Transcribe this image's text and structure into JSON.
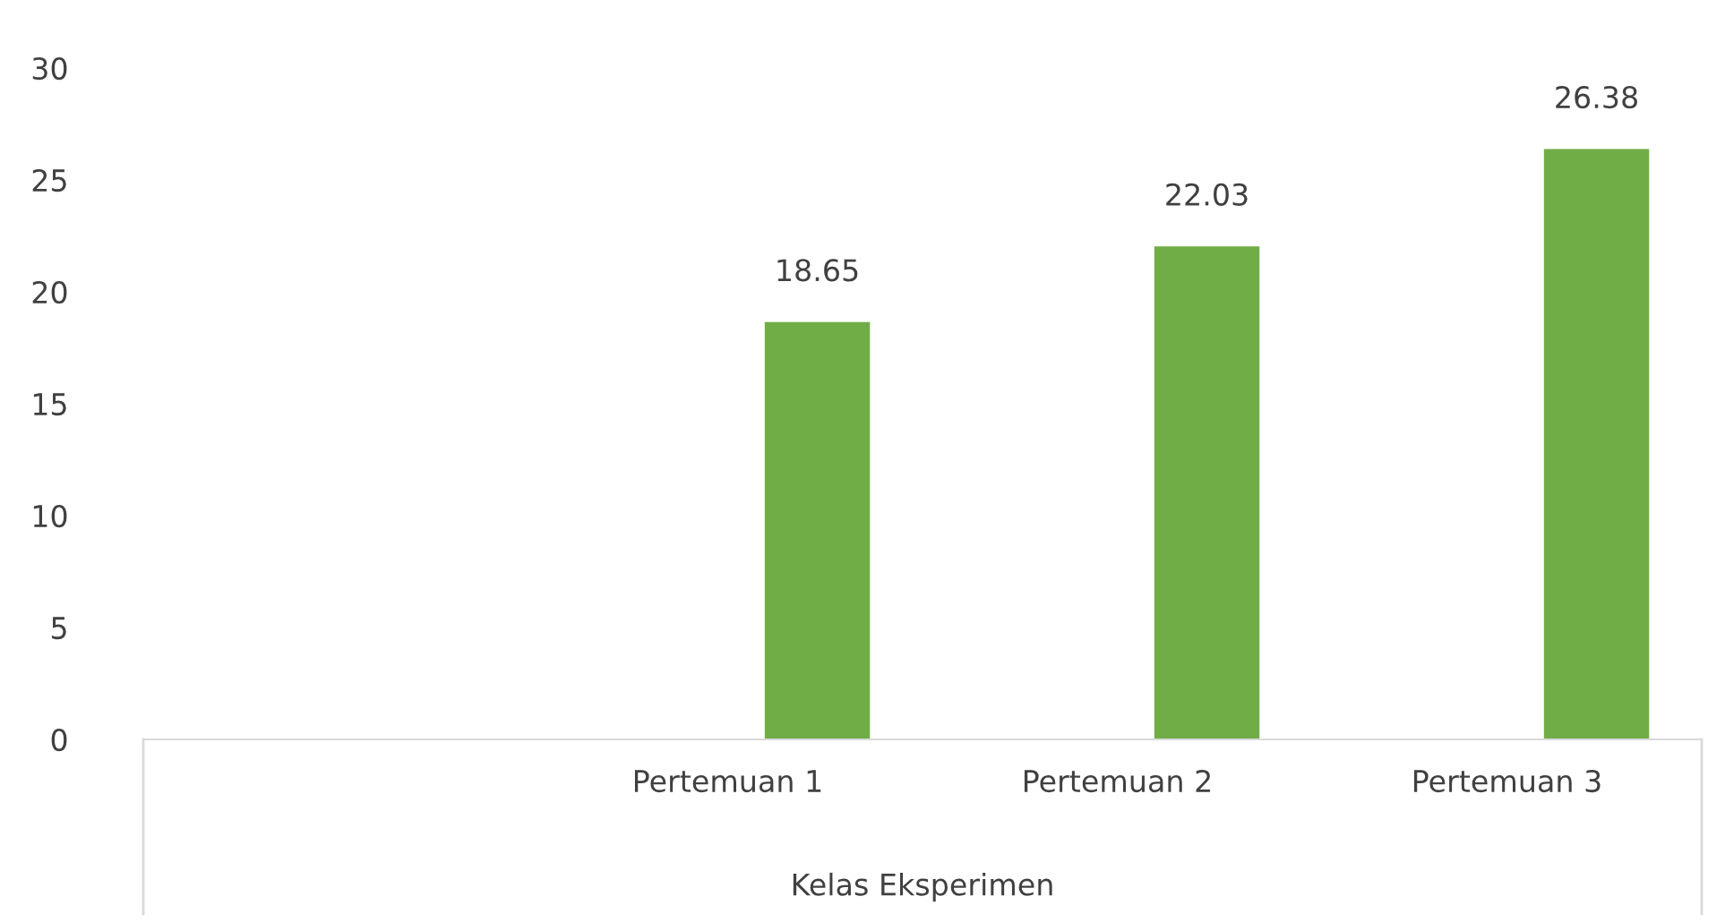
{
  "chart_data": {
    "type": "bar",
    "categories": [
      null,
      "Pertemuan 1",
      "Pertemuan 2",
      "Pertemuan 3"
    ],
    "xlabel": "Kelas Eksperimen",
    "series": [
      {
        "values": [
          null,
          null,
          null,
          null
        ]
      },
      {
        "color": "#70ad47",
        "values": [
          null,
          18.65,
          22.03,
          26.38
        ]
      }
    ],
    "ylim": [
      0,
      30
    ],
    "yticks": [
      0,
      5,
      10,
      15,
      20,
      25,
      30
    ],
    "grid": false,
    "data_labels": true
  }
}
